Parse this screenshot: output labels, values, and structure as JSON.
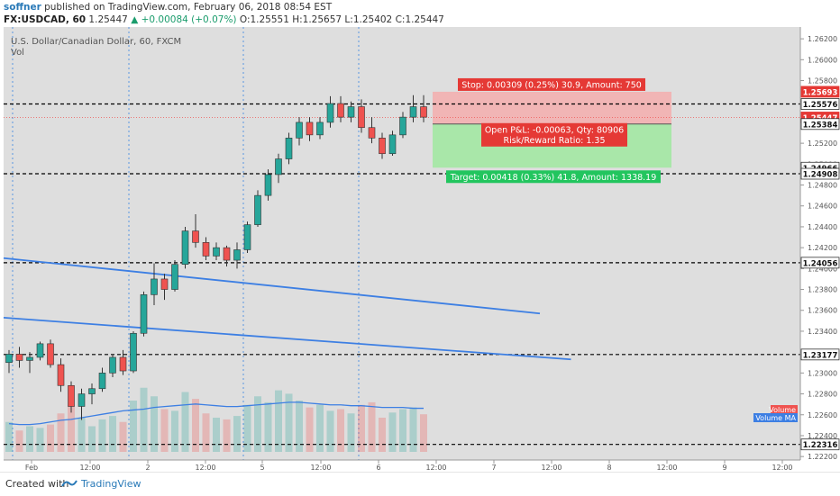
{
  "header": {
    "author": "soffner",
    "published": "published on TradingView.com, February 06, 2018 08:54 EST",
    "symbol": "FX:USDCAD, 60",
    "last": "1.25447",
    "arrow": "▲",
    "change": "+0.00084 (+0.07%)",
    "ohlc": "O:1.25551 H:1.25657 L:1.25402 C:1.25447"
  },
  "legend": {
    "title": "U.S. Dollar/Canadian Dollar, 60, FXCM",
    "vol": "Vol"
  },
  "colors": {
    "bull": "#26a69a",
    "bear": "#ef5350",
    "trendline": "#3d7fe3",
    "stop_zone": "#f3b0b0",
    "target_zone": "#a3e8a3",
    "plot_bg": "#dedede",
    "vline": "#4a90e2",
    "hline": "#000000"
  },
  "footer": {
    "created": "Created with",
    "brand": "TradingView"
  },
  "chart_data": {
    "type": "candlestick",
    "symbol": "FX:USDCAD",
    "interval": "60",
    "ylim": [
      1.2221,
      1.2627
    ],
    "y_ticks": [
      "1.26200",
      "1.26000",
      "1.25800",
      "1.25600",
      "1.25400",
      "1.25200",
      "1.25000",
      "1.24800",
      "1.24600",
      "1.24400",
      "1.24200",
      "1.24000",
      "1.23800",
      "1.23600",
      "1.23400",
      "1.23200",
      "1.23000",
      "1.22800",
      "1.22600",
      "1.22400",
      "1.22200"
    ],
    "x_ticks": [
      "Feb",
      "12:00",
      "2",
      "12:00",
      "5",
      "12:00",
      "6",
      "12:00",
      "7",
      "12:00",
      "8",
      "12:00",
      "9",
      "12:00"
    ],
    "price_tags": [
      {
        "label": "1.25693",
        "value": 1.25693,
        "kind": "stop"
      },
      {
        "label": "1.25576",
        "value": 1.25576,
        "kind": "level"
      },
      {
        "label": "1.25447",
        "value": 1.25447,
        "kind": "last"
      },
      {
        "label": "1.25384",
        "value": 1.25384,
        "kind": "entry"
      },
      {
        "label": "1.24966",
        "value": 1.24966,
        "kind": "target"
      },
      {
        "label": "1.24908",
        "value": 1.24908,
        "kind": "level"
      },
      {
        "label": "1.24056",
        "value": 1.24056,
        "kind": "level"
      },
      {
        "label": "1.23177",
        "value": 1.23177,
        "kind": "level"
      },
      {
        "label": "1.22316",
        "value": 1.22316,
        "kind": "level"
      }
    ],
    "horizontal_levels": [
      1.25576,
      1.24908,
      1.24056,
      1.23177,
      1.22316
    ],
    "last_price": 1.25447,
    "position": {
      "entry": 1.25384,
      "stop": 1.25693,
      "target": 1.24966,
      "stop_label": "Stop: 0.00309 (0.25%) 30.9, Amount: 750",
      "target_label": "Target: 0.00418 (0.33%) 41.8, Amount: 1338.19",
      "pnl_label": "Open P&L: -0.00063, Qty: 80906",
      "rr_label": "Risk/Reward Ratio: 1.35"
    },
    "trendlines": [
      {
        "from": [
          0,
          1.241
        ],
        "to": [
          46,
          1.2357
        ]
      },
      {
        "from": [
          0,
          1.2353
        ],
        "to": [
          49,
          1.2313
        ]
      }
    ],
    "volume_labels": [
      "Volume",
      "Volume MA"
    ],
    "candles": [
      [
        1.231,
        1.2322,
        1.23,
        1.2318
      ],
      [
        1.2318,
        1.2325,
        1.2305,
        1.2312
      ],
      [
        1.2312,
        1.232,
        1.23,
        1.2315
      ],
      [
        1.2315,
        1.233,
        1.2312,
        1.2328
      ],
      [
        1.2328,
        1.2332,
        1.2305,
        1.2308
      ],
      [
        1.2308,
        1.2314,
        1.2282,
        1.2288
      ],
      [
        1.2288,
        1.2292,
        1.2262,
        1.2268
      ],
      [
        1.2268,
        1.2285,
        1.2255,
        1.228
      ],
      [
        1.228,
        1.229,
        1.227,
        1.2285
      ],
      [
        1.2285,
        1.2305,
        1.2282,
        1.23
      ],
      [
        1.23,
        1.2318,
        1.2296,
        1.2315
      ],
      [
        1.2315,
        1.2322,
        1.2298,
        1.2302
      ],
      [
        1.2302,
        1.234,
        1.23,
        1.2338
      ],
      [
        1.2338,
        1.2378,
        1.2335,
        1.2375
      ],
      [
        1.2375,
        1.2405,
        1.2365,
        1.239
      ],
      [
        1.239,
        1.2395,
        1.237,
        1.238
      ],
      [
        1.238,
        1.2408,
        1.2378,
        1.2404
      ],
      [
        1.2404,
        1.244,
        1.24,
        1.2436
      ],
      [
        1.2436,
        1.2452,
        1.242,
        1.2425
      ],
      [
        1.2425,
        1.243,
        1.2408,
        1.2412
      ],
      [
        1.2412,
        1.2425,
        1.2408,
        1.242
      ],
      [
        1.242,
        1.2422,
        1.2402,
        1.2408
      ],
      [
        1.2408,
        1.2425,
        1.24,
        1.2418
      ],
      [
        1.2418,
        1.2445,
        1.2415,
        1.2442
      ],
      [
        1.2442,
        1.2475,
        1.244,
        1.247
      ],
      [
        1.247,
        1.2495,
        1.2465,
        1.249
      ],
      [
        1.249,
        1.251,
        1.2482,
        1.2505
      ],
      [
        1.2505,
        1.253,
        1.25,
        1.2525
      ],
      [
        1.2525,
        1.2545,
        1.2518,
        1.254
      ],
      [
        1.254,
        1.2545,
        1.2522,
        1.2528
      ],
      [
        1.2528,
        1.2545,
        1.2524,
        1.254
      ],
      [
        1.254,
        1.2565,
        1.2535,
        1.2558
      ],
      [
        1.2558,
        1.2565,
        1.254,
        1.2545
      ],
      [
        1.2545,
        1.256,
        1.254,
        1.2555
      ],
      [
        1.2555,
        1.2562,
        1.253,
        1.2535
      ],
      [
        1.2535,
        1.2545,
        1.252,
        1.2525
      ],
      [
        1.2525,
        1.253,
        1.2505,
        1.251
      ],
      [
        1.251,
        1.2532,
        1.2508,
        1.2528
      ],
      [
        1.2528,
        1.255,
        1.2525,
        1.2545
      ],
      [
        1.2545,
        1.2566,
        1.254,
        1.2555
      ],
      [
        1.2555,
        1.2566,
        1.254,
        1.2545
      ]
    ],
    "volumes": [
      0.35,
      0.25,
      0.3,
      0.28,
      0.32,
      0.45,
      0.55,
      0.4,
      0.3,
      0.38,
      0.42,
      0.35,
      0.6,
      0.75,
      0.65,
      0.5,
      0.48,
      0.7,
      0.62,
      0.45,
      0.4,
      0.38,
      0.42,
      0.55,
      0.65,
      0.58,
      0.72,
      0.68,
      0.6,
      0.52,
      0.55,
      0.48,
      0.5,
      0.45,
      0.55,
      0.58,
      0.4,
      0.46,
      0.5,
      0.52,
      0.44
    ],
    "volume_ma": [
      0.33,
      0.32,
      0.32,
      0.33,
      0.35,
      0.37,
      0.38,
      0.4,
      0.42,
      0.44,
      0.46,
      0.48,
      0.49,
      0.5,
      0.52,
      0.53,
      0.54,
      0.55,
      0.56,
      0.55,
      0.54,
      0.53,
      0.53,
      0.54,
      0.55,
      0.56,
      0.57,
      0.58,
      0.58,
      0.57,
      0.56,
      0.55,
      0.55,
      0.54,
      0.54,
      0.53,
      0.52,
      0.52,
      0.52,
      0.51,
      0.51
    ]
  }
}
